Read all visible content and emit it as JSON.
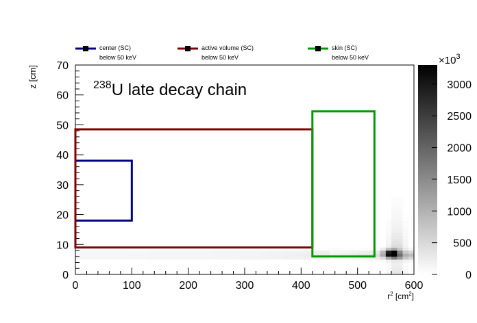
{
  "chart_data": {
    "type": "heatmap",
    "title": "",
    "annotation": {
      "superscript": "238",
      "text": "U late decay chain"
    },
    "xlabel": {
      "base": "r",
      "sup1": "2",
      "mid": " [cm",
      "sup2": "2",
      "end": "]"
    },
    "ylabel": "z [cm]",
    "xlim": [
      0,
      600
    ],
    "ylim": [
      0,
      70
    ],
    "x_ticks": [
      0,
      100,
      200,
      300,
      400,
      500,
      600
    ],
    "y_ticks": [
      0,
      10,
      20,
      30,
      40,
      50,
      60,
      70
    ],
    "colorbar": {
      "multiplier": {
        "base": "×10",
        "sup": "3"
      },
      "range": [
        0,
        3300
      ],
      "ticks": [
        0,
        500,
        1000,
        1500,
        2000,
        2500,
        3000
      ],
      "colormap": "grayscale"
    },
    "regions": [
      {
        "name": "center (SC)",
        "note": "below 50 keV",
        "color": "#000080",
        "r2": [
          0,
          100
        ],
        "z": [
          18,
          38
        ]
      },
      {
        "name": "active volume (SC)",
        "note": "below 50 keV",
        "color": "#800000",
        "r2": [
          0,
          420
        ],
        "z": [
          9,
          48.5
        ]
      },
      {
        "name": "skin (SC)",
        "note": "below 50 keV",
        "color": "#009900",
        "r2": [
          420,
          530
        ],
        "z": [
          6,
          54.5
        ]
      }
    ],
    "legend_placement": "top",
    "hot_spot": {
      "r2": 560,
      "z": 7,
      "value": 3300
    }
  }
}
